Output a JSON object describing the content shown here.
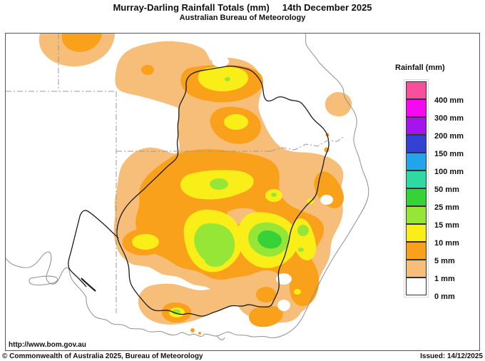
{
  "header": {
    "title": "Murray-Darling Rainfall Totals (mm)",
    "date": "14th December 2025",
    "organisation": "Australian Bureau of Meteorology"
  },
  "legend": {
    "title": "Rainfall (mm)",
    "entries": [
      {
        "label": "400 mm",
        "color_key": "pink"
      },
      {
        "label": "300 mm",
        "color_key": "magenta"
      },
      {
        "label": "200 mm",
        "color_key": "purple"
      },
      {
        "label": "150 mm",
        "color_key": "blue"
      },
      {
        "label": "100 mm",
        "color_key": "light_blue"
      },
      {
        "label": "50 mm",
        "color_key": "teal"
      },
      {
        "label": "25 mm",
        "color_key": "green"
      },
      {
        "label": "15 mm",
        "color_key": "light_green"
      },
      {
        "label": "10 mm",
        "color_key": "yellow"
      },
      {
        "label": "5 mm",
        "color_key": "orange"
      },
      {
        "label": "1 mm",
        "color_key": "tan"
      },
      {
        "label": "0 mm",
        "color_key": "white"
      }
    ]
  },
  "palette": {
    "pink": "#F94E99",
    "magenta": "#F609F2",
    "purple": "#A513EE",
    "blue": "#3341D4",
    "light_blue": "#22A5EC",
    "teal": "#2FD9A4",
    "green": "#35D338",
    "light_green": "#96E637",
    "yellow": "#FAEE19",
    "orange": "#F9A11B",
    "tan": "#F6BE79",
    "white": "#FFFFFF"
  },
  "line_colors": {
    "coastline": "#8F8F8F",
    "basin_boundary": "#1B1B1B",
    "state_border": "#9A9A9A",
    "contour_outline": "#4D4D4D"
  },
  "footer": {
    "url": "http://www.bom.gov.au",
    "copyright": "© Commonwealth of Australia 2025, Bureau of Meteorology",
    "issued": "Issued: 14/12/2025"
  }
}
